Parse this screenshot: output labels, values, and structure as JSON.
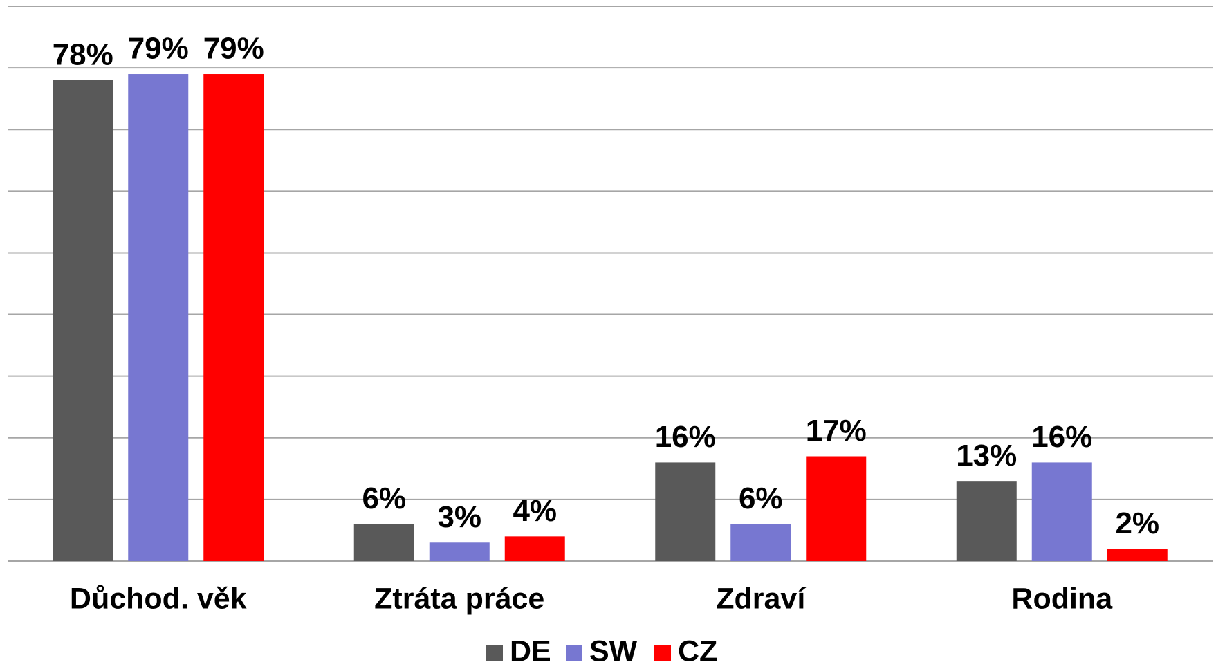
{
  "chart_data": {
    "type": "bar",
    "categories": [
      "Důchod. věk",
      "Ztráta práce",
      "Zdraví",
      "Rodina"
    ],
    "series": [
      {
        "name": "DE",
        "color": "#595959",
        "values": [
          78,
          6,
          16,
          13
        ],
        "value_labels": [
          "78%",
          "6%",
          "16%",
          "13%"
        ]
      },
      {
        "name": "SW",
        "color": "#7777d1",
        "values": [
          79,
          3,
          6,
          16
        ],
        "value_labels": [
          "79%",
          "3%",
          "6%",
          "16%"
        ]
      },
      {
        "name": "CZ",
        "color": "#ff0000",
        "values": [
          79,
          4,
          17,
          2
        ],
        "value_labels": [
          "79%",
          "4%",
          "17%",
          "2%"
        ]
      }
    ],
    "ylim": [
      0,
      90
    ],
    "yticks": [
      0,
      10,
      20,
      30,
      40,
      50,
      60,
      70,
      80,
      90
    ],
    "grid": true,
    "legend": "bottom"
  }
}
